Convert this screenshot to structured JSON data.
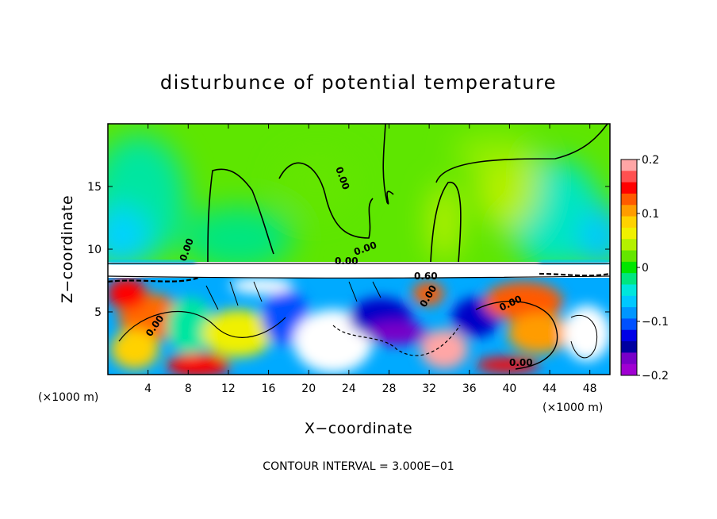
{
  "chart_data": {
    "type": "heatmap",
    "title": "disturbunce of potential temperature",
    "xlabel": "X−coordinate",
    "ylabel": "Z−coordinate",
    "x_unit_left": "(×1000 m)",
    "x_unit_right": "(×1000 m)",
    "x_ticks": [
      {
        "value": 4,
        "label": "4"
      },
      {
        "value": 8,
        "label": "8"
      },
      {
        "value": 12,
        "label": "12"
      },
      {
        "value": 16,
        "label": "16"
      },
      {
        "value": 20,
        "label": "20"
      },
      {
        "value": 24,
        "label": "24"
      },
      {
        "value": 28,
        "label": "28"
      },
      {
        "value": 32,
        "label": "32"
      },
      {
        "value": 36,
        "label": "36"
      },
      {
        "value": 40,
        "label": "40"
      },
      {
        "value": 44,
        "label": "44"
      },
      {
        "value": 48,
        "label": "48"
      }
    ],
    "y_ticks": [
      {
        "value": 5,
        "label": "5"
      },
      {
        "value": 10,
        "label": "10"
      },
      {
        "value": 15,
        "label": "15"
      }
    ],
    "xlim": [
      0,
      50
    ],
    "ylim": [
      0,
      20
    ],
    "colorbar": {
      "range": [
        -0.2,
        0.2
      ],
      "ticks": [
        {
          "value": 0.2,
          "label": "0.2"
        },
        {
          "value": 0.1,
          "label": "0.1"
        },
        {
          "value": 0,
          "label": "0"
        },
        {
          "value": -0.1,
          "label": "−0.1"
        },
        {
          "value": -0.2,
          "label": "−0.2"
        }
      ],
      "colors": [
        "#ffa6a6",
        "#ff5050",
        "#ff0000",
        "#ff5a00",
        "#ff9c00",
        "#ffd200",
        "#f0f000",
        "#b4f000",
        "#64e600",
        "#00e600",
        "#00e680",
        "#00e6dc",
        "#00c8ff",
        "#0096ff",
        "#0050ff",
        "#0000e6",
        "#0000a0",
        "#7800c8",
        "#a000d2"
      ]
    },
    "contour_labels": [
      "0.00",
      "0.00",
      "0.00",
      "0.00",
      "0.00",
      "0.60",
      "0.00",
      "0.00",
      "0.00"
    ],
    "footer": "CONTOUR INTERVAL = 3.000E−01"
  }
}
